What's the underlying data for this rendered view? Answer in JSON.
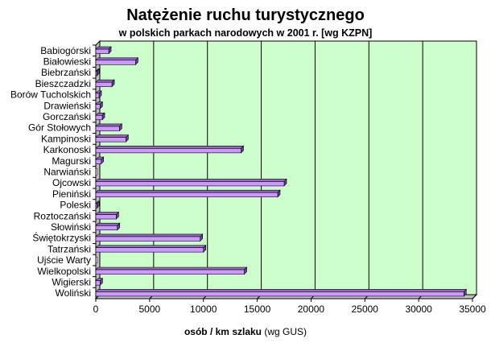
{
  "chart_data": {
    "type": "bar",
    "orientation": "horizontal",
    "title": "Natężenie ruchu turystycznego",
    "subtitle": "w polskich parkach narodowych w 2001 r. [wg KZPN]",
    "xlabel_main": "osób / km szlaku",
    "xlabel_note": "(wg GUS)",
    "ylabel": "",
    "categories": [
      "Babiogórski",
      "Białowieski",
      "Biebrzański",
      "Bieszczadzki",
      "Borów Tucholskich",
      "Drawieński",
      "Gorczański",
      "Gór Stołowych",
      "Kampinoski",
      "Karkonoski",
      "Magurski",
      "Narwiański",
      "Ojcowski",
      "Pieniński",
      "Poleski",
      "Roztoczański",
      "Słowiński",
      "Świętokrzyski",
      "Tatrzański",
      "Ujście Warty",
      "Wielkopolski",
      "Wigierski",
      "Woliński"
    ],
    "values": [
      1200,
      3700,
      100,
      1500,
      300,
      400,
      600,
      2200,
      2800,
      13500,
      500,
      0,
      17500,
      16900,
      100,
      1900,
      2000,
      9700,
      10000,
      0,
      13800,
      400,
      34200
    ],
    "xlim": [
      0,
      35000
    ],
    "xticks": [
      "0",
      "5000",
      "10000",
      "15000",
      "20000",
      "25000",
      "30000",
      "35000"
    ],
    "grid": "vertical",
    "legend": "none",
    "colors": {
      "plot_background": "#ccffcc",
      "bar_face": "#cc99ff",
      "bar_top": "#9966cc",
      "bar_side": "#664499",
      "gridline": "#000000",
      "wall": "#c0c0c0"
    }
  }
}
